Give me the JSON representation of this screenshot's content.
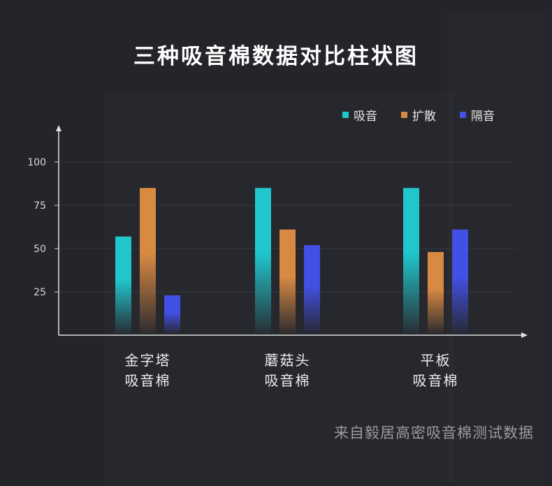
{
  "chart_data": {
    "type": "bar",
    "title": "三种吸音棉数据对比柱状图",
    "categories": [
      [
        "金字塔",
        "吸音棉"
      ],
      [
        "蘑菇头",
        "吸音棉"
      ],
      [
        "平板",
        "吸音棉"
      ]
    ],
    "series": [
      {
        "name": "吸音",
        "color": "#21c5cc",
        "values": [
          57,
          85,
          85
        ]
      },
      {
        "name": "扩散",
        "color": "#d98a42",
        "values": [
          85,
          61,
          48
        ]
      },
      {
        "name": "隔音",
        "color": "#4350e6",
        "values": [
          23,
          52,
          61
        ]
      }
    ],
    "yticks": [
      25,
      50,
      75,
      100
    ],
    "ylim": [
      0,
      112
    ],
    "grid": true,
    "legend_position": "top-right",
    "source_note": "来自毅居高密吸音棉测试数据"
  }
}
